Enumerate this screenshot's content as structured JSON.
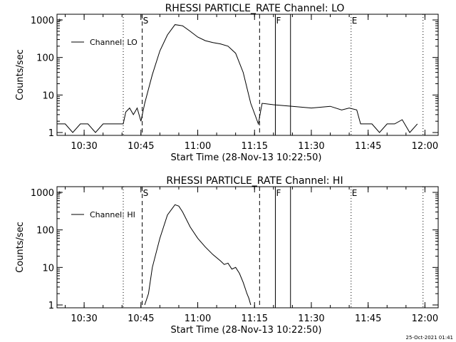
{
  "footer": {
    "timestamp": "25-Oct-2021 01:41"
  },
  "chart_data": [
    {
      "type": "line",
      "title": "RHESSI PARTICLE_RATE Channel: LO",
      "xlabel": "Start Time (28-Nov-13 10:22:50)",
      "ylabel": "Counts/sec",
      "ylog": true,
      "ylim": [
        1,
        1000
      ],
      "xlim": [
        "10:22:50",
        "12:03:30"
      ],
      "x_ticks": [
        "10:30",
        "10:45",
        "11:00",
        "11:15",
        "11:30",
        "11:45",
        "12:00"
      ],
      "y_ticks": [
        "1",
        "10",
        "100",
        "1000"
      ],
      "legend": {
        "position": "top-left",
        "entries": [
          "Channel: LO"
        ]
      },
      "markers": [
        {
          "label": "",
          "time": "10:40:20",
          "style": "dotted"
        },
        {
          "label": "S",
          "time": "10:45:20",
          "style": "dashed"
        },
        {
          "label": "",
          "time": "11:16:20",
          "style": "dashed"
        },
        {
          "label": "F",
          "time": "11:20:30",
          "style": "solid"
        },
        {
          "label": "",
          "time": "11:24:30",
          "style": "solid"
        },
        {
          "label": "E",
          "time": "11:40:30",
          "style": "dotted"
        },
        {
          "label": "",
          "time": "11:59:30",
          "style": "dotted"
        }
      ],
      "series": [
        {
          "name": "Channel: LO",
          "x": [
            "10:22:50",
            "10:25",
            "10:27",
            "10:29",
            "10:31",
            "10:33",
            "10:35",
            "10:37",
            "10:39",
            "10:40:20",
            "10:41",
            "10:42",
            "10:43",
            "10:44",
            "10:45",
            "10:46",
            "10:48",
            "10:50",
            "10:52",
            "10:54",
            "10:56",
            "10:58",
            "11:00",
            "11:02",
            "11:04",
            "11:06",
            "11:08",
            "11:10",
            "11:12",
            "11:14",
            "11:16",
            "11:16:40",
            "11:17",
            "11:20",
            "11:25",
            "11:30",
            "11:35",
            "11:38",
            "11:40",
            "11:42",
            "11:43",
            "11:44",
            "11:46",
            "11:48",
            "11:50",
            "11:52",
            "11:54",
            "11:56",
            "11:58"
          ],
          "y": [
            1.7,
            1.7,
            1.0,
            1.7,
            1.7,
            1.0,
            1.7,
            1.7,
            1.7,
            1.7,
            3.5,
            4.5,
            3.0,
            4.5,
            2.0,
            6,
            35,
            150,
            400,
            750,
            700,
            500,
            350,
            280,
            250,
            230,
            200,
            130,
            40,
            6,
            1.7,
            4,
            6,
            5.5,
            5,
            4.5,
            5,
            4,
            4.5,
            4,
            1.7,
            1.7,
            1.7,
            1,
            1.7,
            1.7,
            2.2,
            1,
            1.7
          ]
        }
      ]
    },
    {
      "type": "line",
      "title": "RHESSI PARTICLE_RATE Channel: HI",
      "xlabel": "Start Time (28-Nov-13 10:22:50)",
      "ylabel": "Counts/sec",
      "ylog": true,
      "ylim": [
        1,
        1000
      ],
      "xlim": [
        "10:22:50",
        "12:03:30"
      ],
      "x_ticks": [
        "10:30",
        "10:45",
        "11:00",
        "11:15",
        "11:30",
        "11:45",
        "12:00"
      ],
      "y_ticks": [
        "1",
        "10",
        "100",
        "1000"
      ],
      "legend": {
        "position": "top-left",
        "entries": [
          "Channel: HI"
        ]
      },
      "markers": [
        {
          "label": "",
          "time": "10:40:20",
          "style": "dotted"
        },
        {
          "label": "S",
          "time": "10:45:20",
          "style": "dashed"
        },
        {
          "label": "",
          "time": "11:16:20",
          "style": "dashed"
        },
        {
          "label": "F",
          "time": "11:20:30",
          "style": "solid"
        },
        {
          "label": "",
          "time": "11:24:30",
          "style": "solid"
        },
        {
          "label": "E",
          "time": "11:40:30",
          "style": "dotted"
        },
        {
          "label": "",
          "time": "11:59:30",
          "style": "dotted"
        }
      ],
      "series": [
        {
          "name": "Channel: HI",
          "x": [
            "10:46",
            "10:47",
            "10:48",
            "10:50",
            "10:52",
            "10:54",
            "10:55",
            "10:56",
            "10:58",
            "11:00",
            "11:02",
            "11:04",
            "11:06",
            "11:07",
            "11:08",
            "11:09",
            "11:10",
            "11:11",
            "11:12",
            "11:13",
            "11:13:30",
            "11:14"
          ],
          "y": [
            1,
            2,
            10,
            60,
            250,
            470,
            430,
            300,
            120,
            60,
            35,
            22,
            15,
            12,
            13,
            9,
            10,
            7,
            4,
            2,
            1.5,
            1
          ]
        }
      ]
    }
  ]
}
